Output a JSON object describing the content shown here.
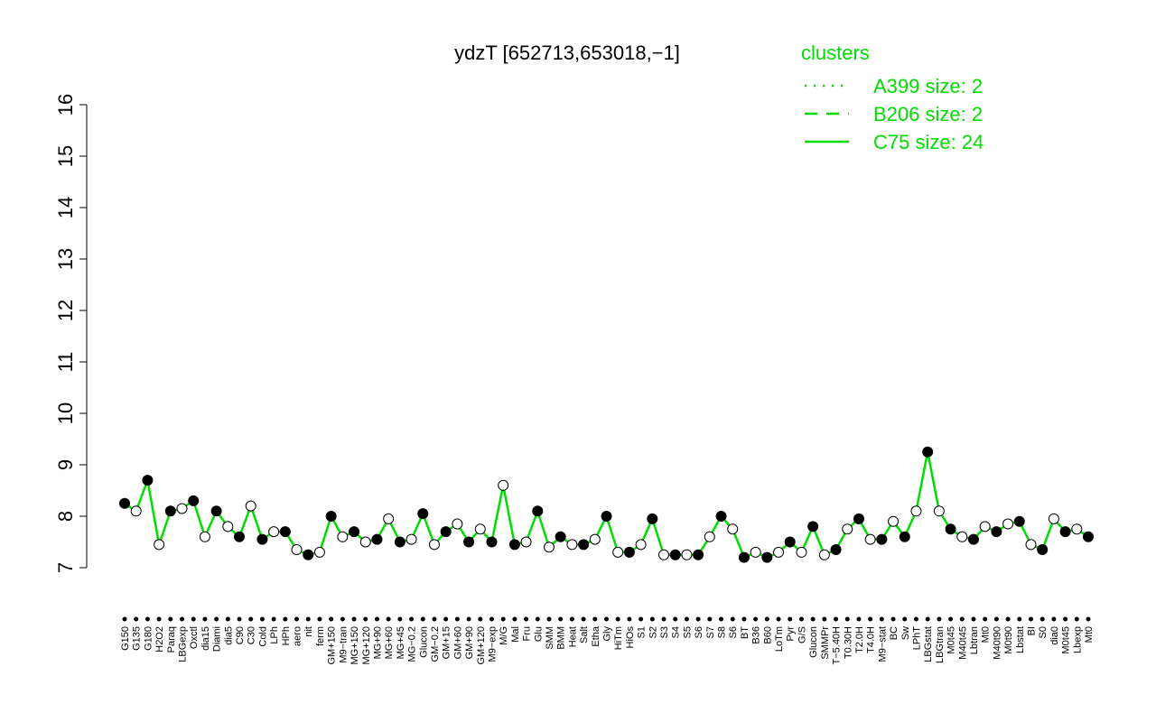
{
  "chart_data": {
    "type": "line",
    "title": "ydzT [652713,653018,−1]",
    "categories": [
      "G150",
      "G135",
      "G180",
      "H2O2",
      "Paraq",
      "LBGexp",
      "Oxctl",
      "dia15",
      "Diami",
      "dia5",
      "C90",
      "C30",
      "Cold",
      "LPh",
      "HPh",
      "aero",
      "nit",
      "ferm",
      "GM+150",
      "M9−tran",
      "MG+150",
      "MG+120",
      "MG+90",
      "MG+60",
      "MG+45",
      "MG−0.2",
      "Glucon",
      "GM−0.2",
      "GM+15",
      "GM+60",
      "GM+90",
      "GM+120",
      "M9−exp",
      "M/G",
      "Mal",
      "Fru",
      "Glu",
      "SMM",
      "BMM",
      "Heat",
      "Salt",
      "Etha",
      "Gly",
      "HiTm",
      "HiOs",
      "S1",
      "S2",
      "S3",
      "S4",
      "S5",
      "S6",
      "S7",
      "S8",
      "S6",
      "BT",
      "B36",
      "B60",
      "LoTm",
      "Pyr",
      "G/S",
      "Glucon",
      "SMMPr",
      "T−5.40H",
      "T0.30H",
      "T2.0H",
      "T4.0H",
      "M9−stat",
      "BC",
      "Sw",
      "LPhT",
      "LBGstat",
      "LBGtran",
      "M0t45",
      "M40t45",
      "Lbtran",
      "Mt0",
      "M40t90",
      "M0t90",
      "Lbstat",
      "BI",
      "S0",
      "dia0",
      "M0t45",
      "Lbexp",
      "Mt0"
    ],
    "series": [
      {
        "name": "C75 size: 24",
        "color": "#00dd00",
        "values": [
          8.25,
          8.1,
          8.7,
          7.45,
          8.1,
          8.15,
          8.3,
          7.6,
          8.1,
          7.8,
          7.6,
          8.2,
          7.55,
          7.7,
          7.7,
          7.35,
          7.25,
          7.3,
          8.0,
          7.6,
          7.7,
          7.5,
          7.55,
          7.95,
          7.5,
          7.55,
          8.05,
          7.45,
          7.7,
          7.85,
          7.5,
          7.75,
          7.5,
          8.6,
          7.45,
          7.5,
          8.1,
          7.4,
          7.6,
          7.45,
          7.45,
          7.55,
          8.0,
          7.3,
          7.3,
          7.45,
          7.95,
          7.25,
          7.25,
          7.25,
          7.25,
          7.6,
          8.0,
          7.75,
          7.2,
          7.3,
          7.2,
          7.3,
          7.5,
          7.3,
          7.8,
          7.25,
          7.35,
          7.75,
          7.95,
          7.55,
          7.55,
          7.9,
          7.6,
          8.1,
          9.25,
          8.1,
          7.75,
          7.6,
          7.55,
          7.8,
          7.7,
          7.85,
          7.9,
          7.45,
          7.35,
          7.95,
          7.7,
          7.75,
          7.6
        ]
      }
    ],
    "legend": {
      "title": "clusters",
      "position": "top-right",
      "entries": [
        {
          "label": "A399 size: 2",
          "dash": "dotted"
        },
        {
          "label": "B206 size: 2",
          "dash": "dashed"
        },
        {
          "label": "C75 size: 24",
          "dash": "solid"
        }
      ]
    },
    "ylim": [
      7,
      16
    ],
    "yticks": [
      7,
      8,
      9,
      10,
      11,
      12,
      13,
      14,
      15,
      16
    ]
  }
}
